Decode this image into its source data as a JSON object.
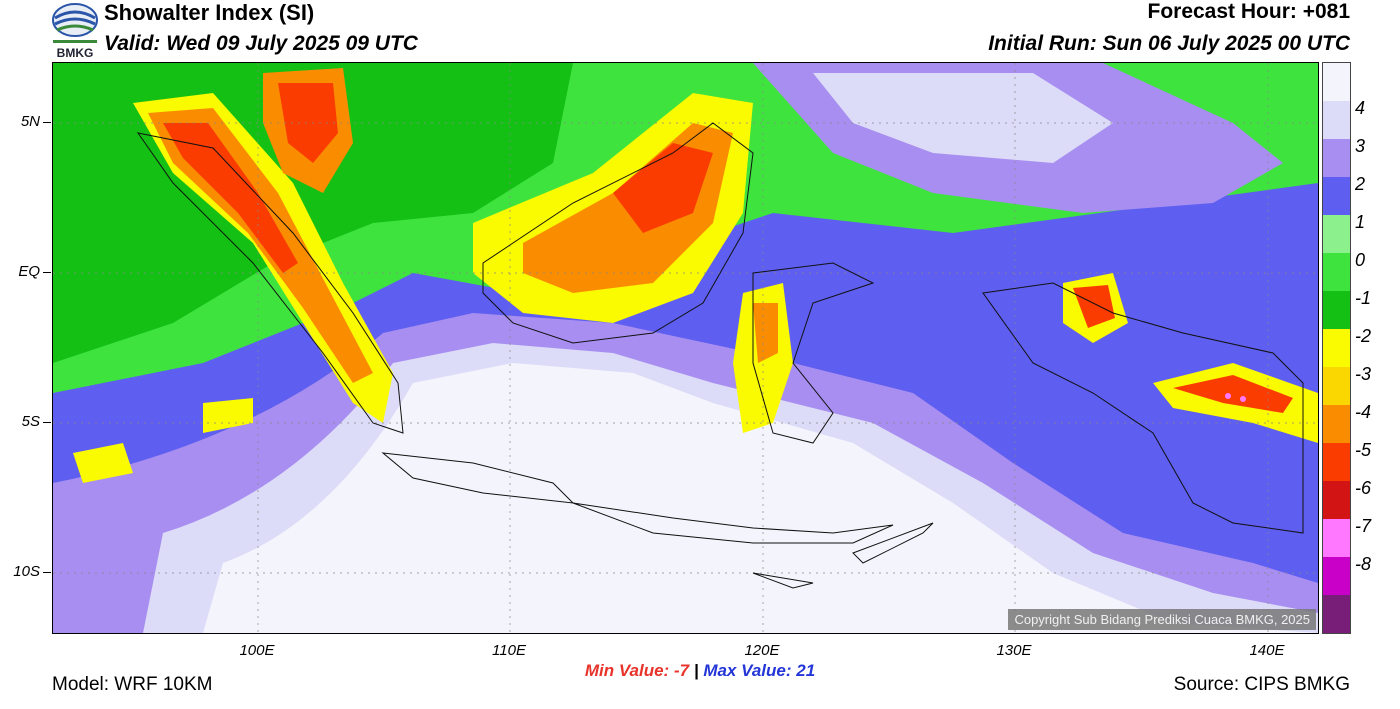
{
  "header": {
    "title": "Showalter Index (SI)",
    "valid": "Valid: Wed 09 July 2025 09 UTC",
    "forecast_hour": "Forecast Hour: +081",
    "initial_run": "Initial Run: Sun 06 July 2025 00 UTC",
    "logo_text": "BMKG"
  },
  "map": {
    "lat_labels": [
      "5N",
      "EQ",
      "5S",
      "10S"
    ],
    "lon_labels": [
      "100E",
      "110E",
      "120E",
      "130E",
      "140E"
    ],
    "copyright": "Copyright Sub Bidang Prediksi Cuaca BMKG, 2025"
  },
  "stats": {
    "min_label": "Min Value:",
    "min_value": "-7",
    "separator": "|",
    "max_label": "Max Value:",
    "max_value": "21"
  },
  "footer": {
    "model": "Model: WRF 10KM",
    "source": "Source: CIPS BMKG"
  },
  "colorbar": {
    "labels": [
      "4",
      "3",
      "2",
      "1",
      "0",
      "-1",
      "-2",
      "-3",
      "-4",
      "-5",
      "-6",
      "-7",
      "-8"
    ],
    "colors": [
      "#f4f4fc",
      "#dcdcf8",
      "#a78ef0",
      "#5e5ef0",
      "#8cf08c",
      "#3ee33e",
      "#14c014",
      "#fafa00",
      "#fad700",
      "#fa8c00",
      "#fa3c00",
      "#d21414",
      "#ff78ff",
      "#c800c8",
      "#781e78"
    ]
  }
}
